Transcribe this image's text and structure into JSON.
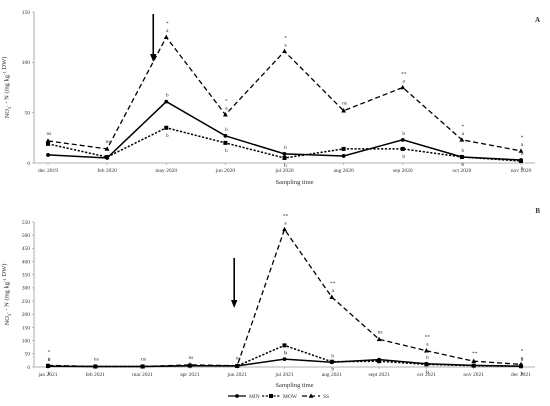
{
  "chart_data": [
    {
      "panel": "A",
      "type": "line",
      "xlabel": "Sampling time",
      "ylabel": "NO3- - N (mg kg-1 DW)",
      "ylim": [
        0,
        150
      ],
      "yticks": [
        0,
        50,
        100,
        150
      ],
      "categories": [
        "dec 2019",
        "feb 2020",
        "may 2020",
        "jun 2020",
        "jul 2020",
        "aug 2020",
        "sep 2020",
        "oct 2020",
        "nov 2020"
      ],
      "legend": "bottom",
      "grid": false,
      "series": [
        {
          "name": "MIN",
          "style": "solid",
          "marker": "circle",
          "values": [
            8,
            5,
            61,
            27,
            9,
            7,
            23,
            6,
            3
          ]
        },
        {
          "name": "MOW",
          "style": "dotted",
          "marker": "square",
          "values": [
            19,
            6,
            35,
            20,
            5,
            14,
            14,
            6,
            2
          ]
        },
        {
          "name": "SS",
          "style": "dashed",
          "marker": "triangle",
          "values": [
            22,
            14,
            125,
            48,
            111,
            52,
            75,
            23,
            12
          ]
        }
      ],
      "arrow_at": "may 2020",
      "significance": [
        "ns",
        "ns",
        "*",
        "*",
        "*",
        "ns",
        "**",
        "*",
        "*"
      ],
      "letters": {
        "SS": [
          "",
          "",
          "a",
          "a",
          "a",
          "",
          "a",
          "a",
          "a"
        ],
        "MIN": [
          "",
          "",
          "b",
          "b",
          "b",
          "",
          "b",
          "b",
          "b"
        ],
        "MOW": [
          "",
          "",
          "b",
          "b",
          "b",
          "",
          "b",
          "b",
          "b"
        ]
      }
    },
    {
      "panel": "B",
      "type": "line",
      "xlabel": "Sampling time",
      "ylabel": "NO3- - N (mg kg-1 DW)",
      "ylim": [
        0,
        550
      ],
      "yticks": [
        0,
        50,
        100,
        150,
        200,
        250,
        300,
        350,
        400,
        450,
        500,
        550
      ],
      "categories": [
        "jan 2021",
        "feb 2021",
        "mar 2021",
        "apr 2021",
        "jun 2021",
        "jul 2021",
        "aug 2021",
        "sept 2021",
        "oct 2021",
        "nov 2021",
        "dec 2021"
      ],
      "legend": "bottom",
      "grid": false,
      "series": [
        {
          "name": "MIN",
          "style": "solid",
          "marker": "circle",
          "values": [
            3,
            2,
            2,
            5,
            4,
            30,
            18,
            28,
            12,
            6,
            3
          ]
        },
        {
          "name": "MOW",
          "style": "dotted",
          "marker": "square",
          "values": [
            4,
            2,
            2,
            5,
            4,
            82,
            20,
            22,
            10,
            5,
            3
          ]
        },
        {
          "name": "SS",
          "style": "dashed",
          "marker": "triangle",
          "values": [
            6,
            2,
            2,
            8,
            5,
            522,
            265,
            105,
            62,
            22,
            10
          ]
        }
      ],
      "arrow_at": "jun 2021",
      "significance": [
        "*",
        "ns",
        "ns",
        "ns",
        "ns",
        "**",
        "**",
        "ns",
        "**",
        "**",
        "*"
      ],
      "letters": {
        "SS": [
          "a",
          "",
          "",
          "",
          "",
          "a",
          "a",
          "",
          "a",
          "",
          "a"
        ],
        "MIN": [
          "b",
          "",
          "",
          "",
          "",
          "b",
          "b",
          "",
          "b",
          "",
          "b"
        ],
        "MOW": [
          "b",
          "",
          "",
          "",
          "",
          "b",
          "b",
          "",
          "b",
          "",
          "b"
        ]
      }
    }
  ],
  "legend": {
    "min_label": "MIN",
    "mow_label": "MOW",
    "ss_label": "SS"
  }
}
